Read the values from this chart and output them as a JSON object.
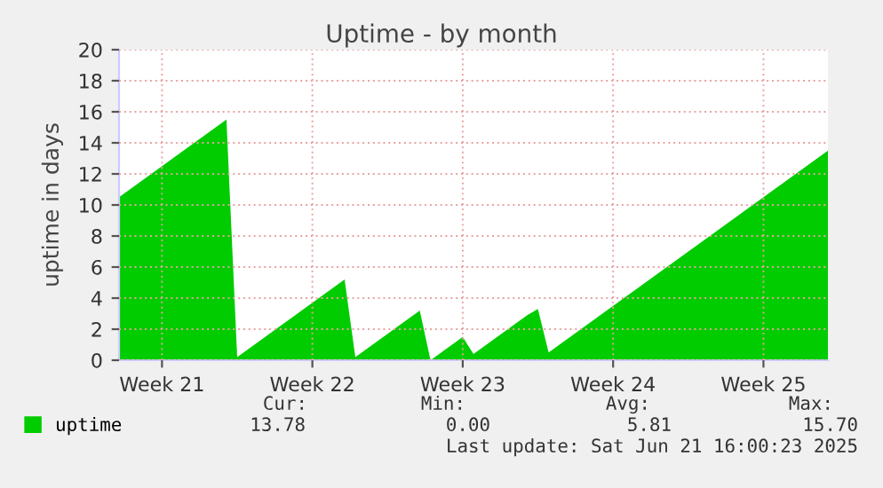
{
  "chart_data": {
    "type": "area",
    "title": "Uptime - by month",
    "ylabel": "uptime in days",
    "categories": [
      null,
      null,
      null,
      null,
      "Week 21",
      null,
      null,
      null,
      null,
      null,
      null,
      null,
      null,
      null,
      null,
      null,
      null,
      null,
      "Week 22",
      null,
      null,
      null,
      null,
      null,
      null,
      null,
      null,
      null,
      null,
      null,
      null,
      null,
      "Week 23",
      null,
      null,
      null,
      null,
      null,
      null,
      null,
      null,
      null,
      null,
      null,
      null,
      null,
      "Week 24",
      null,
      null,
      null,
      null,
      null,
      null,
      null,
      null,
      null,
      null,
      null,
      null,
      null,
      "Week 25",
      null,
      null,
      null,
      null,
      null,
      null
    ],
    "series": [
      {
        "name": "uptime",
        "color": "#00cc00",
        "values": [
          10.5,
          11.0,
          11.5,
          12.0,
          12.5,
          13.0,
          13.5,
          14.0,
          14.5,
          15.0,
          15.5,
          0.2,
          0.7,
          1.2,
          1.7,
          2.2,
          2.7,
          3.2,
          3.7,
          4.2,
          4.7,
          5.2,
          0.2,
          0.7,
          1.2,
          1.7,
          2.2,
          2.7,
          3.2,
          0.0,
          0.5,
          1.0,
          1.5,
          0.4,
          0.9,
          1.4,
          1.9,
          2.4,
          2.9,
          3.3,
          0.5,
          1.0,
          1.5,
          2.0,
          2.5,
          3.0,
          3.5,
          4.0,
          4.5,
          5.0,
          5.5,
          6.0,
          6.5,
          7.0,
          7.5,
          8.0,
          8.5,
          9.0,
          9.5,
          10.0,
          10.5,
          11.0,
          11.5,
          12.0,
          12.5,
          13.0,
          13.5
        ]
      }
    ],
    "ylim": [
      0,
      20
    ],
    "yticks": [
      0,
      2,
      4,
      6,
      8,
      10,
      12,
      14,
      16,
      18,
      20
    ],
    "grid": true,
    "legend": "bottom left",
    "annotations": [
      "Cur:",
      "13.78",
      "Min:",
      "0.00",
      "Avg:",
      "5.81",
      "Max:",
      "15.70",
      "Last update: Sat Jun 21 16:00:23 2025"
    ]
  }
}
